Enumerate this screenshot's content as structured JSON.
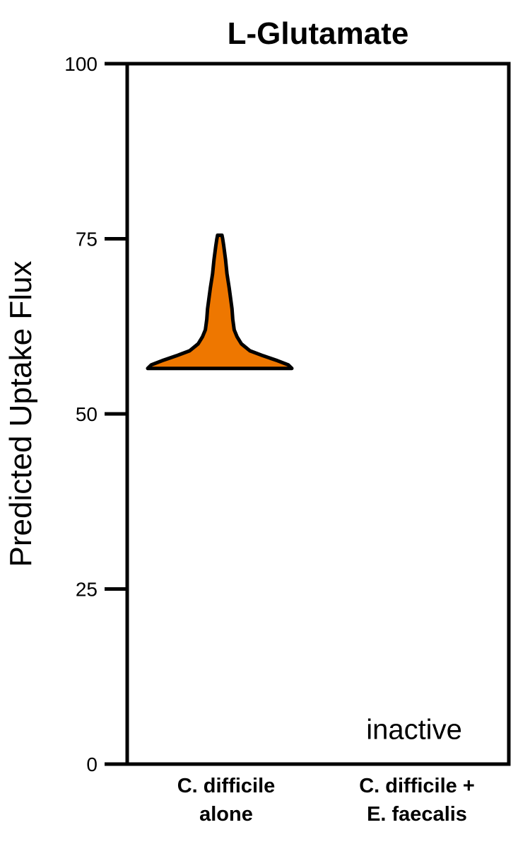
{
  "chart_data": {
    "type": "violin",
    "title": "L-Glutamate",
    "ylabel": "Predicted Uptake Flux",
    "xlabel": "",
    "ylim": [
      0,
      100
    ],
    "yticks": [
      0,
      25,
      50,
      75,
      100
    ],
    "grid": false,
    "categories": [
      {
        "lines": [
          "C. difficile",
          "alone"
        ]
      },
      {
        "lines": [
          "C. difficile +",
          "E. faecalis"
        ]
      }
    ],
    "violins": [
      {
        "category_index": 0,
        "color": "#EE7700",
        "min": 56.5,
        "max": 75.5,
        "density_profile": [
          {
            "y": 56.5,
            "w": 1.0
          },
          {
            "y": 57.0,
            "w": 0.95
          },
          {
            "y": 57.6,
            "w": 0.8
          },
          {
            "y": 58.3,
            "w": 0.6
          },
          {
            "y": 59.0,
            "w": 0.42
          },
          {
            "y": 60.0,
            "w": 0.3
          },
          {
            "y": 61.0,
            "w": 0.24
          },
          {
            "y": 62.0,
            "w": 0.2
          },
          {
            "y": 63.5,
            "w": 0.18
          },
          {
            "y": 65.0,
            "w": 0.17
          },
          {
            "y": 66.5,
            "w": 0.15
          },
          {
            "y": 68.0,
            "w": 0.13
          },
          {
            "y": 70.0,
            "w": 0.1
          },
          {
            "y": 72.0,
            "w": 0.08
          },
          {
            "y": 74.0,
            "w": 0.055
          },
          {
            "y": 75.0,
            "w": 0.04
          },
          {
            "y": 75.5,
            "w": 0.03
          }
        ]
      }
    ],
    "annotations": [
      {
        "category_index": 1,
        "text": "inactive",
        "y": 5
      }
    ],
    "colors": {
      "violin_fill": "#EE7700",
      "axis": "#000000"
    }
  }
}
